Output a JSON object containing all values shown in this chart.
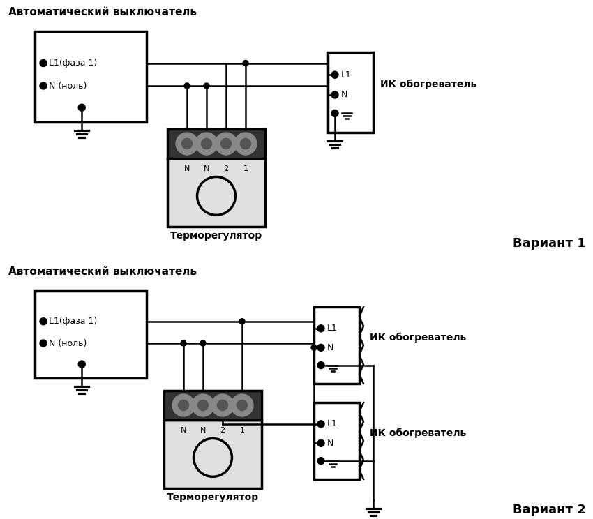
{
  "bg_color": "#ffffff",
  "lc": "#000000",
  "lw": 1.8,
  "lw2": 2.5,
  "title_cb": "Автоматический выключатель",
  "title_tr": "Терморегулятор",
  "label_ik": "ИК обогреватель",
  "label_v1": "Вариант 1",
  "label_v2": "Вариант 2",
  "label_L1f": "L1(фаза 1)",
  "label_Nn": "N (ноль)",
  "label_L1": "L1",
  "label_N": "N",
  "term_labels": [
    "N",
    "N",
    "2",
    "1"
  ]
}
